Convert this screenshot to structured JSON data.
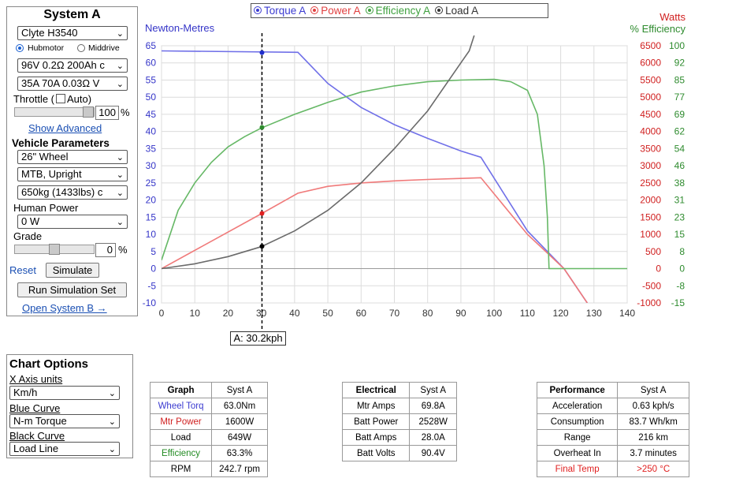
{
  "system": {
    "title": "System A",
    "motor_select": "Clyte H3540",
    "motor_type_options": [
      "Hubmotor",
      "Middrive"
    ],
    "motor_type_selected": "Hubmotor",
    "battery_select": "96V 0.2Ω 200Ah c",
    "controller_select": "35A 70A 0.03Ω V",
    "throttle_label": "Throttle (",
    "throttle_auto_label": "Auto)",
    "throttle_value": "100",
    "throttle_fraction": 1.0,
    "percent_sign": "%",
    "show_advanced": "Show Advanced",
    "vehicle_params_title": "Vehicle Parameters",
    "wheel_select": "26\"  Wheel",
    "posture_select": "MTB, Upright",
    "mass_select": "650kg (1433lbs) c",
    "human_power_label": "Human Power",
    "human_power_select": "0 W",
    "grade_label": "Grade",
    "grade_value": "0",
    "grade_fraction": 0.5,
    "reset_link": "Reset",
    "simulate_button": "Simulate",
    "run_sim_button": "Run Simulation Set",
    "open_system_b": "Open System B →"
  },
  "chart_options": {
    "title": "Chart Options",
    "x_axis_label": "X Axis units",
    "x_axis_select": "Km/h",
    "blue_curve_label": "Blue Curve",
    "blue_curve_select": "N-m Torque",
    "black_curve_label": "Black Curve",
    "black_curve_select": "Load Line"
  },
  "graph_table": {
    "headers": [
      "Graph",
      "Syst A"
    ],
    "rows": [
      {
        "label": "Wheel Torq",
        "value": "63.0Nm",
        "color": "#3b3bd0"
      },
      {
        "label": "Mtr Power",
        "value": "1600W",
        "color": "#d02020"
      },
      {
        "label": "Load",
        "value": "649W",
        "color": "#000000"
      },
      {
        "label": "Efficiency",
        "value": "63.3%",
        "color": "#228b22"
      },
      {
        "label": "RPM",
        "value": "242.7 rpm",
        "color": "#000000"
      }
    ]
  },
  "electrical_table": {
    "headers": [
      "Electrical",
      "Syst A"
    ],
    "rows": [
      {
        "label": "Mtr Amps",
        "value": "69.8A"
      },
      {
        "label": "Batt Power",
        "value": "2528W"
      },
      {
        "label": "Batt Amps",
        "value": "28.0A"
      },
      {
        "label": "Batt Volts",
        "value": "90.4V"
      }
    ]
  },
  "performance_table": {
    "headers": [
      "Performance",
      "Syst A"
    ],
    "rows": [
      {
        "label": "Acceleration",
        "value": "0.63 kph/s",
        "color": "#000000"
      },
      {
        "label": "Consumption",
        "value": "83.7 Wh/km",
        "color": "#000000"
      },
      {
        "label": "Range",
        "value": "216 km",
        "color": "#000000"
      },
      {
        "label": "Overheat In",
        "value": "3.7 minutes",
        "color": "#000000"
      },
      {
        "label": "Final Temp",
        "value": ">250 °C",
        "color": "#e02020"
      }
    ]
  },
  "chart_data": {
    "type": "line",
    "legend": [
      {
        "name": "Torque A",
        "color": "#3b3bd0"
      },
      {
        "name": "Power A",
        "color": "#e04040"
      },
      {
        "name": "Efficiency A",
        "color": "#3fa03f"
      },
      {
        "name": "Load A",
        "color": "#333333"
      }
    ],
    "left_axis_title": "Newton-Metres",
    "right_axis_title_watts": "Watts",
    "right_axis_title_eff": "% Efficiency",
    "xlim": [
      0,
      140
    ],
    "x_ticks": [
      0,
      10,
      20,
      30,
      40,
      50,
      60,
      70,
      80,
      90,
      100,
      110,
      120,
      130,
      140
    ],
    "ylim_left": [
      -10,
      65
    ],
    "y_left_ticks": [
      -10,
      -5,
      0,
      5,
      10,
      15,
      20,
      25,
      30,
      35,
      40,
      45,
      50,
      55,
      60,
      65
    ],
    "ylim_watts": [
      -1000,
      6500
    ],
    "y_watts_ticks": [
      -1000,
      -500,
      0,
      500,
      1000,
      1500,
      2000,
      2500,
      3000,
      3500,
      4000,
      4500,
      5000,
      5500,
      6000,
      6500
    ],
    "y_eff_ticks": [
      "-15",
      "-8",
      "0",
      "0",
      "8",
      "15",
      "23",
      "31",
      "38",
      "46",
      "54",
      "62",
      "69",
      "77",
      "85",
      "92",
      "100"
    ],
    "y_eff_tick_labels": [
      "-15",
      "-8",
      "0",
      "0",
      "8",
      "15",
      "23",
      "31",
      "38",
      "46",
      "54",
      "62",
      "69",
      "77",
      "85",
      "92",
      "100"
    ],
    "grid": true,
    "cursor_x": 30.2,
    "cursor_label": "A: 30.2kph",
    "series": [
      {
        "name": "Torque A",
        "axis": "left",
        "color": "#7070e8",
        "points": [
          [
            0,
            63.5
          ],
          [
            41,
            63.1
          ],
          [
            50,
            54
          ],
          [
            60,
            47
          ],
          [
            70,
            42
          ],
          [
            80,
            38
          ],
          [
            90,
            34.3
          ],
          [
            96,
            32.5
          ],
          [
            110,
            11
          ],
          [
            121,
            0
          ],
          [
            128,
            -10
          ]
        ]
      },
      {
        "name": "Power A",
        "axis": "watts",
        "color": "#f07a7a",
        "points": [
          [
            0,
            0
          ],
          [
            30,
            1600
          ],
          [
            41,
            2200
          ],
          [
            50,
            2400
          ],
          [
            60,
            2500
          ],
          [
            70,
            2560
          ],
          [
            80,
            2600
          ],
          [
            90,
            2630
          ],
          [
            96,
            2650
          ],
          [
            110,
            1000
          ],
          [
            121,
            0
          ],
          [
            128,
            -1000
          ]
        ]
      },
      {
        "name": "Efficiency A",
        "axis": "left",
        "color": "#66b866",
        "points": [
          [
            0,
            2.5
          ],
          [
            5,
            17
          ],
          [
            10,
            25
          ],
          [
            15,
            31
          ],
          [
            20,
            35.5
          ],
          [
            25,
            38.5
          ],
          [
            30,
            41
          ],
          [
            40,
            45
          ],
          [
            50,
            48.5
          ],
          [
            60,
            51.5
          ],
          [
            70,
            53.3
          ],
          [
            80,
            54.5
          ],
          [
            90,
            55
          ],
          [
            100,
            55.2
          ],
          [
            105,
            54.5
          ],
          [
            110,
            52
          ],
          [
            113,
            45
          ],
          [
            115,
            30
          ],
          [
            116,
            15
          ],
          [
            116.5,
            0
          ],
          [
            140,
            0
          ]
        ]
      },
      {
        "name": "Load A",
        "axis": "left",
        "color": "#6a6a6a",
        "points": [
          [
            0,
            0
          ],
          [
            10,
            1.4
          ],
          [
            20,
            3.5
          ],
          [
            30,
            6.4
          ],
          [
            40,
            11
          ],
          [
            50,
            17
          ],
          [
            60,
            25
          ],
          [
            70,
            35
          ],
          [
            80,
            46
          ],
          [
            90,
            60
          ],
          [
            92.5,
            63.5
          ],
          [
            94,
            68
          ]
        ]
      }
    ],
    "markers": [
      {
        "series": "Torque A",
        "x": 30.2,
        "y": 63.0,
        "color": "#1f2ecc"
      },
      {
        "series": "Efficiency A",
        "x": 30.2,
        "y": 41.2,
        "color": "#2e8b2e"
      },
      {
        "series": "Power A",
        "x": 30.2,
        "y": 16.1,
        "color": "#e02020"
      },
      {
        "series": "Load A",
        "x": 30.2,
        "y": 6.5,
        "color": "#000000"
      }
    ]
  }
}
